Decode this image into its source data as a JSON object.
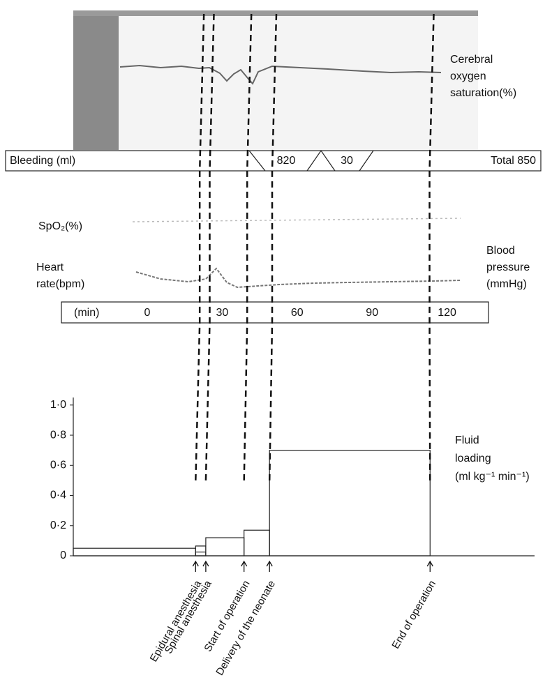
{
  "cerebral_label": [
    "Cerebral",
    "oxygen",
    "saturation(%)"
  ],
  "bleeding": {
    "label": "Bleeding (ml)",
    "values": [
      820,
      30
    ],
    "total": "Total 850"
  },
  "vitals": {
    "spo2": "SpO₂(%)",
    "heart_rate": [
      "Heart",
      "rate(bpm)"
    ],
    "blood_pressure": [
      "Blood",
      "pressure",
      "(mmHg)"
    ]
  },
  "time_axis": {
    "unit": "(min)",
    "ticks": [
      0,
      30,
      60,
      90,
      120
    ]
  },
  "chart_data": {
    "type": "step",
    "ylabel": [
      "Fluid",
      "loading",
      "(ml kg⁻¹ min⁻¹)"
    ],
    "xlim": [
      -27,
      154
    ],
    "ylim": [
      0,
      1.05
    ],
    "yticks": [
      0,
      {
        "value": 0.2,
        "label": "0·2"
      },
      {
        "value": 0.4,
        "label": "0·4"
      },
      {
        "value": 0.6,
        "label": "0·6"
      },
      {
        "value": 0.8,
        "label": "0·8"
      },
      {
        "value": 1,
        "label": "1·0"
      }
    ],
    "steps": [
      {
        "from": -27,
        "to": 21,
        "value": 0.05
      },
      {
        "from": 21,
        "to": 25,
        "value": 0.065
      },
      {
        "from": 21,
        "to": 25,
        "value": 0.025
      },
      {
        "from": 25,
        "to": 40,
        "value": 0.12
      },
      {
        "from": 40,
        "to": 50,
        "value": 0.17
      },
      {
        "from": 50,
        "to": 113,
        "value": 0.7
      }
    ],
    "events": [
      {
        "label": "Epidural anesthesia",
        "time": 21
      },
      {
        "label": "Spinal anesthesia",
        "time": 25
      },
      {
        "label": "Start of operation",
        "time": 40
      },
      {
        "label": "Delivery of the neonate",
        "time": 50
      },
      {
        "label": "End of operation",
        "time": 113
      }
    ]
  }
}
